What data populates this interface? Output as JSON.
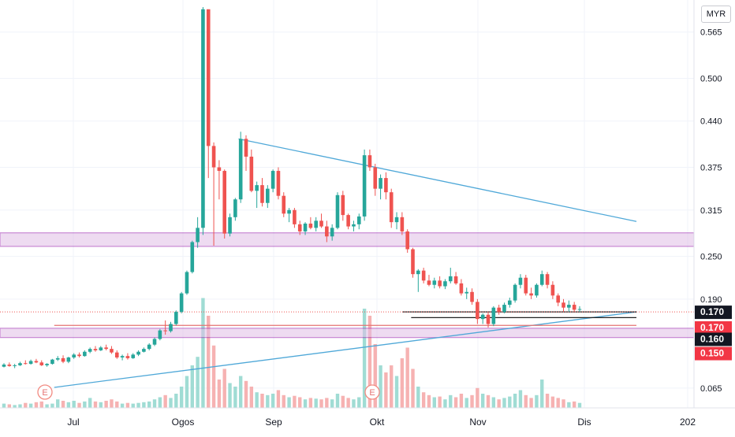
{
  "symbol_currency": "MYR",
  "chart_data": {
    "type": "candlestick",
    "title": "",
    "x_ticks": [
      "Jul",
      "Ogos",
      "Sep",
      "Okt",
      "Nov",
      "Dis",
      "202"
    ],
    "y_ticks": [
      "0.565",
      "0.500",
      "0.440",
      "0.375",
      "0.315",
      "0.250",
      "0.190",
      "0.065"
    ],
    "ylim": [
      0.035,
      0.61
    ],
    "grid": true,
    "price_labels": [
      {
        "value": "0.170",
        "price": 0.172,
        "style": "dark"
      },
      {
        "value": "0.170",
        "price": 0.15,
        "style": "red"
      },
      {
        "value": "0.160",
        "price": 0.134,
        "style": "dark"
      },
      {
        "value": "0.150",
        "price": 0.114,
        "style": "red"
      }
    ],
    "zones": [
      {
        "from": 0.264,
        "to": 0.283,
        "color": "#e1bee7",
        "border": "#9c27b0"
      },
      {
        "from": 0.136,
        "to": 0.149,
        "color": "#e1bee7",
        "border": "#9c27b0"
      }
    ],
    "lines": [
      {
        "name": "descending resistance",
        "from": {
          "date": "2023-08-20",
          "price": 0.415
        },
        "to": {
          "date": "2024-01-03",
          "price": 0.299
        },
        "color": "#4fa8d8"
      },
      {
        "name": "ascending support",
        "from": {
          "date": "2023-06-18",
          "price": 0.066
        },
        "to": {
          "date": "2024-01-03",
          "price": 0.172
        },
        "color": "#4fa8d8"
      },
      {
        "name": "horizontal support",
        "from": {
          "date": "2023-10-15",
          "price": 0.172
        },
        "to": {
          "date": "2024-01-03",
          "price": 0.172
        },
        "color": "#222222"
      },
      {
        "name": "horizontal support",
        "from": {
          "date": "2023-10-18",
          "price": 0.164
        },
        "to": {
          "date": "2024-01-03",
          "price": 0.164
        },
        "color": "#222222"
      },
      {
        "name": "red level",
        "from": {
          "date": "2023-06-18",
          "price": 0.153
        },
        "to": {
          "date": "2024-01-03",
          "price": 0.153
        },
        "color": "#e57373"
      }
    ],
    "earnings_markers": [
      "E",
      "E"
    ],
    "series": [
      {
        "name": "price",
        "ohlcv": [
          [
            0.095,
            0.1,
            0.094,
            0.098,
            6
          ],
          [
            0.098,
            0.101,
            0.095,
            0.096,
            5
          ],
          [
            0.096,
            0.099,
            0.093,
            0.097,
            4
          ],
          [
            0.097,
            0.102,
            0.096,
            0.1,
            5
          ],
          [
            0.1,
            0.104,
            0.098,
            0.099,
            7
          ],
          [
            0.099,
            0.105,
            0.098,
            0.103,
            6
          ],
          [
            0.103,
            0.106,
            0.1,
            0.101,
            8
          ],
          [
            0.101,
            0.104,
            0.096,
            0.097,
            9
          ],
          [
            0.097,
            0.1,
            0.095,
            0.099,
            5
          ],
          [
            0.099,
            0.106,
            0.098,
            0.105,
            6
          ],
          [
            0.105,
            0.11,
            0.103,
            0.107,
            12
          ],
          [
            0.107,
            0.111,
            0.1,
            0.102,
            10
          ],
          [
            0.102,
            0.109,
            0.1,
            0.108,
            8
          ],
          [
            0.108,
            0.114,
            0.106,
            0.112,
            10
          ],
          [
            0.112,
            0.115,
            0.108,
            0.11,
            7
          ],
          [
            0.11,
            0.118,
            0.109,
            0.116,
            9
          ],
          [
            0.116,
            0.122,
            0.114,
            0.12,
            14
          ],
          [
            0.12,
            0.124,
            0.116,
            0.118,
            9
          ],
          [
            0.118,
            0.124,
            0.117,
            0.122,
            8
          ],
          [
            0.122,
            0.126,
            0.118,
            0.12,
            10
          ],
          [
            0.12,
            0.124,
            0.113,
            0.115,
            12
          ],
          [
            0.115,
            0.118,
            0.106,
            0.108,
            9
          ],
          [
            0.108,
            0.112,
            0.104,
            0.11,
            6
          ],
          [
            0.11,
            0.114,
            0.105,
            0.107,
            7
          ],
          [
            0.107,
            0.114,
            0.106,
            0.112,
            6
          ],
          [
            0.112,
            0.118,
            0.11,
            0.116,
            7
          ],
          [
            0.116,
            0.122,
            0.115,
            0.12,
            8
          ],
          [
            0.12,
            0.128,
            0.118,
            0.126,
            9
          ],
          [
            0.126,
            0.136,
            0.124,
            0.134,
            12
          ],
          [
            0.134,
            0.148,
            0.132,
            0.146,
            15
          ],
          [
            0.146,
            0.16,
            0.14,
            0.145,
            18
          ],
          [
            0.145,
            0.158,
            0.143,
            0.155,
            14
          ],
          [
            0.155,
            0.174,
            0.153,
            0.172,
            20
          ],
          [
            0.172,
            0.2,
            0.17,
            0.198,
            30
          ],
          [
            0.198,
            0.23,
            0.196,
            0.228,
            45
          ],
          [
            0.228,
            0.272,
            0.226,
            0.27,
            60
          ],
          [
            0.27,
            0.305,
            0.262,
            0.29,
            72
          ],
          [
            0.29,
            0.6,
            0.28,
            0.597,
            155
          ],
          [
            0.597,
            0.59,
            0.36,
            0.405,
            130
          ],
          [
            0.405,
            0.41,
            0.265,
            0.375,
            88
          ],
          [
            0.375,
            0.385,
            0.33,
            0.37,
            40
          ],
          [
            0.37,
            0.372,
            0.275,
            0.282,
            55
          ],
          [
            0.282,
            0.31,
            0.278,
            0.305,
            35
          ],
          [
            0.305,
            0.332,
            0.3,
            0.33,
            30
          ],
          [
            0.33,
            0.425,
            0.325,
            0.415,
            45
          ],
          [
            0.415,
            0.42,
            0.37,
            0.39,
            38
          ],
          [
            0.39,
            0.4,
            0.34,
            0.342,
            30
          ],
          [
            0.342,
            0.355,
            0.318,
            0.35,
            22
          ],
          [
            0.35,
            0.36,
            0.32,
            0.325,
            20
          ],
          [
            0.325,
            0.35,
            0.318,
            0.345,
            18
          ],
          [
            0.345,
            0.372,
            0.34,
            0.37,
            20
          ],
          [
            0.37,
            0.375,
            0.33,
            0.335,
            25
          ],
          [
            0.335,
            0.34,
            0.305,
            0.31,
            18
          ],
          [
            0.31,
            0.318,
            0.298,
            0.315,
            15
          ],
          [
            0.315,
            0.318,
            0.29,
            0.295,
            17
          ],
          [
            0.295,
            0.3,
            0.28,
            0.285,
            15
          ],
          [
            0.285,
            0.298,
            0.28,
            0.296,
            12
          ],
          [
            0.296,
            0.305,
            0.288,
            0.29,
            14
          ],
          [
            0.29,
            0.305,
            0.285,
            0.3,
            13
          ],
          [
            0.3,
            0.31,
            0.29,
            0.292,
            12
          ],
          [
            0.292,
            0.3,
            0.27,
            0.278,
            14
          ],
          [
            0.278,
            0.295,
            0.272,
            0.29,
            12
          ],
          [
            0.29,
            0.34,
            0.288,
            0.336,
            20
          ],
          [
            0.336,
            0.342,
            0.3,
            0.308,
            17
          ],
          [
            0.308,
            0.31,
            0.288,
            0.292,
            14
          ],
          [
            0.292,
            0.3,
            0.285,
            0.295,
            12
          ],
          [
            0.295,
            0.31,
            0.288,
            0.306,
            15
          ],
          [
            0.306,
            0.4,
            0.3,
            0.392,
            140
          ],
          [
            0.392,
            0.4,
            0.37,
            0.375,
            130
          ],
          [
            0.375,
            0.38,
            0.335,
            0.345,
            90
          ],
          [
            0.345,
            0.365,
            0.33,
            0.36,
            60
          ],
          [
            0.36,
            0.368,
            0.33,
            0.34,
            50
          ],
          [
            0.34,
            0.345,
            0.29,
            0.298,
            60
          ],
          [
            0.298,
            0.312,
            0.288,
            0.305,
            45
          ],
          [
            0.305,
            0.312,
            0.28,
            0.285,
            70
          ],
          [
            0.285,
            0.288,
            0.255,
            0.26,
            85
          ],
          [
            0.26,
            0.262,
            0.22,
            0.225,
            55
          ],
          [
            0.225,
            0.232,
            0.2,
            0.23,
            30
          ],
          [
            0.23,
            0.234,
            0.212,
            0.216,
            22
          ],
          [
            0.216,
            0.224,
            0.208,
            0.21,
            18
          ],
          [
            0.21,
            0.22,
            0.205,
            0.216,
            15
          ],
          [
            0.216,
            0.222,
            0.205,
            0.208,
            16
          ],
          [
            0.208,
            0.218,
            0.204,
            0.215,
            12
          ],
          [
            0.215,
            0.234,
            0.212,
            0.222,
            18
          ],
          [
            0.222,
            0.228,
            0.21,
            0.212,
            15
          ],
          [
            0.212,
            0.218,
            0.195,
            0.198,
            20
          ],
          [
            0.198,
            0.206,
            0.19,
            0.2,
            14
          ],
          [
            0.2,
            0.205,
            0.182,
            0.186,
            18
          ],
          [
            0.186,
            0.19,
            0.155,
            0.162,
            28
          ],
          [
            0.162,
            0.17,
            0.155,
            0.168,
            20
          ],
          [
            0.168,
            0.172,
            0.15,
            0.155,
            18
          ],
          [
            0.155,
            0.18,
            0.152,
            0.178,
            15
          ],
          [
            0.178,
            0.182,
            0.168,
            0.172,
            12
          ],
          [
            0.172,
            0.185,
            0.17,
            0.182,
            14
          ],
          [
            0.182,
            0.192,
            0.178,
            0.188,
            16
          ],
          [
            0.188,
            0.212,
            0.185,
            0.21,
            20
          ],
          [
            0.21,
            0.225,
            0.205,
            0.22,
            25
          ],
          [
            0.22,
            0.224,
            0.195,
            0.198,
            18
          ],
          [
            0.198,
            0.206,
            0.19,
            0.195,
            14
          ],
          [
            0.195,
            0.212,
            0.192,
            0.21,
            18
          ],
          [
            0.21,
            0.23,
            0.208,
            0.225,
            40
          ],
          [
            0.225,
            0.228,
            0.205,
            0.21,
            20
          ],
          [
            0.21,
            0.215,
            0.19,
            0.195,
            16
          ],
          [
            0.195,
            0.198,
            0.18,
            0.185,
            14
          ],
          [
            0.185,
            0.19,
            0.172,
            0.178,
            12
          ],
          [
            0.178,
            0.188,
            0.172,
            0.182,
            8
          ],
          [
            0.182,
            0.186,
            0.172,
            0.175,
            9
          ],
          [
            0.175,
            0.18,
            0.172,
            0.176,
            7
          ]
        ]
      }
    ],
    "ma_line": [
      [
        32,
        0.148
      ],
      [
        38,
        0.335
      ],
      [
        44,
        0.348
      ],
      [
        52,
        0.318
      ],
      [
        60,
        0.296
      ],
      [
        68,
        0.338
      ],
      [
        74,
        0.28
      ],
      [
        80,
        0.218
      ],
      [
        88,
        0.175
      ],
      [
        96,
        0.198
      ],
      [
        102,
        0.198
      ],
      [
        107,
        0.18
      ]
    ]
  }
}
